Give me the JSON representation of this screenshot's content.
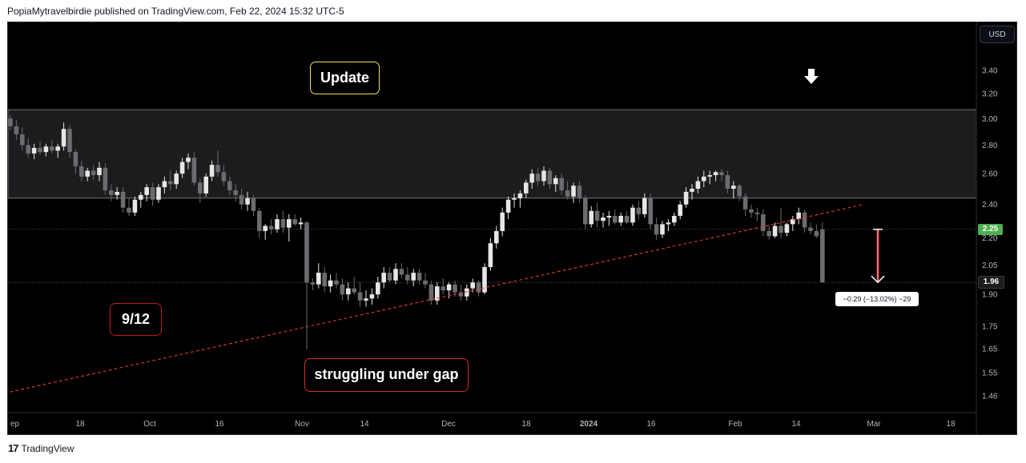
{
  "header": {
    "text": "PopiaMytravelbirdie published on TradingView.com, Feb 22, 2024 15:32 UTC-5"
  },
  "toolbar": {
    "currency": "USD"
  },
  "footer": {
    "brand": "TradingView",
    "logo_glyph": "17"
  },
  "annotations": {
    "update": "Update",
    "date_label": "9/12",
    "gap_label": "struggling under gap",
    "measure": "−0.29 (−13.02%) −29"
  },
  "price_tags": {
    "last": "2.25",
    "current": "1.96"
  },
  "colors": {
    "background": "#000000",
    "candle_up": "#e6e6e6",
    "candle_down": "#6b6b70",
    "trendline": "#e53935",
    "gap_zone": "#1c1c1e",
    "last_price_tag": "#4caf50",
    "current_price_tag": "#1c1c1e",
    "measure_arrow": "#8b0000",
    "update_border": "#f5e06a",
    "label_border": "#d32f2f"
  },
  "chart_data": {
    "type": "candlestick",
    "y_axis": {
      "ticks": [
        3.4,
        3.2,
        3.0,
        2.8,
        2.6,
        2.4,
        2.2,
        2.05,
        1.9,
        1.75,
        1.65,
        1.55,
        1.46
      ],
      "scale": "log"
    },
    "x_axis": {
      "ticks": [
        "ep",
        "18",
        "Oct",
        "16",
        "Nov",
        "14",
        "Dec",
        "18",
        "2024",
        "16",
        "Feb",
        "14",
        "Mar",
        "18"
      ]
    },
    "gap_zone": {
      "top": 3.07,
      "bottom": 2.44
    },
    "trendline": {
      "from": {
        "candle": -1,
        "price": 1.47
      },
      "to": {
        "candle": 144,
        "price": 2.4
      }
    },
    "last_price": 2.25,
    "current_price": 1.96,
    "candles": [
      [
        3.0,
        3.03,
        2.91,
        2.94
      ],
      [
        2.94,
        2.99,
        2.84,
        2.88
      ],
      [
        2.88,
        2.93,
        2.76,
        2.8
      ],
      [
        2.8,
        2.85,
        2.71,
        2.74
      ],
      [
        2.74,
        2.81,
        2.7,
        2.78
      ],
      [
        2.78,
        2.83,
        2.73,
        2.75
      ],
      [
        2.75,
        2.81,
        2.72,
        2.79
      ],
      [
        2.79,
        2.84,
        2.74,
        2.76
      ],
      [
        2.76,
        2.81,
        2.71,
        2.79
      ],
      [
        2.79,
        2.97,
        2.76,
        2.92
      ],
      [
        2.92,
        2.95,
        2.71,
        2.75
      ],
      [
        2.75,
        2.77,
        2.6,
        2.65
      ],
      [
        2.65,
        2.69,
        2.55,
        2.58
      ],
      [
        2.58,
        2.64,
        2.55,
        2.62
      ],
      [
        2.62,
        2.66,
        2.56,
        2.59
      ],
      [
        2.59,
        2.68,
        2.55,
        2.64
      ],
      [
        2.64,
        2.67,
        2.46,
        2.49
      ],
      [
        2.49,
        2.53,
        2.42,
        2.46
      ],
      [
        2.46,
        2.51,
        2.43,
        2.48
      ],
      [
        2.48,
        2.51,
        2.35,
        2.38
      ],
      [
        2.38,
        2.44,
        2.33,
        2.35
      ],
      [
        2.35,
        2.45,
        2.33,
        2.43
      ],
      [
        2.43,
        2.48,
        2.38,
        2.46
      ],
      [
        2.46,
        2.53,
        2.42,
        2.51
      ],
      [
        2.51,
        2.54,
        2.39,
        2.43
      ],
      [
        2.43,
        2.53,
        2.41,
        2.51
      ],
      [
        2.51,
        2.58,
        2.47,
        2.55
      ],
      [
        2.55,
        2.62,
        2.49,
        2.53
      ],
      [
        2.53,
        2.62,
        2.5,
        2.6
      ],
      [
        2.6,
        2.71,
        2.57,
        2.68
      ],
      [
        2.68,
        2.74,
        2.63,
        2.71
      ],
      [
        2.71,
        2.75,
        2.52,
        2.54
      ],
      [
        2.54,
        2.57,
        2.41,
        2.47
      ],
      [
        2.47,
        2.6,
        2.45,
        2.58
      ],
      [
        2.58,
        2.69,
        2.55,
        2.66
      ],
      [
        2.66,
        2.76,
        2.58,
        2.61
      ],
      [
        2.61,
        2.66,
        2.52,
        2.55
      ],
      [
        2.55,
        2.58,
        2.46,
        2.49
      ],
      [
        2.49,
        2.53,
        2.42,
        2.46
      ],
      [
        2.46,
        2.5,
        2.37,
        2.4
      ],
      [
        2.4,
        2.48,
        2.36,
        2.44
      ],
      [
        2.44,
        2.46,
        2.33,
        2.36
      ],
      [
        2.36,
        2.38,
        2.2,
        2.24
      ],
      [
        2.24,
        2.28,
        2.19,
        2.27
      ],
      [
        2.27,
        2.31,
        2.22,
        2.25
      ],
      [
        2.25,
        2.34,
        2.23,
        2.31
      ],
      [
        2.31,
        2.36,
        2.23,
        2.26
      ],
      [
        2.26,
        2.34,
        2.18,
        2.31
      ],
      [
        2.31,
        2.34,
        2.27,
        2.28
      ],
      [
        2.28,
        2.32,
        2.25,
        2.29
      ],
      [
        2.29,
        2.3,
        1.65,
        1.96
      ],
      [
        1.96,
        1.98,
        1.92,
        1.95
      ],
      [
        1.95,
        2.06,
        1.93,
        2.01
      ],
      [
        2.01,
        2.04,
        1.91,
        1.94
      ],
      [
        1.94,
        2.0,
        1.91,
        1.97
      ],
      [
        1.97,
        2.01,
        1.93,
        1.95
      ],
      [
        1.95,
        1.98,
        1.87,
        1.9
      ],
      [
        1.9,
        1.96,
        1.87,
        1.93
      ],
      [
        1.93,
        1.99,
        1.9,
        1.91
      ],
      [
        1.91,
        1.96,
        1.84,
        1.87
      ],
      [
        1.87,
        1.92,
        1.84,
        1.88
      ],
      [
        1.88,
        1.93,
        1.85,
        1.9
      ],
      [
        1.9,
        1.99,
        1.88,
        1.96
      ],
      [
        1.96,
        2.04,
        1.93,
        2.01
      ],
      [
        2.01,
        2.04,
        1.96,
        1.97
      ],
      [
        1.97,
        2.06,
        1.95,
        2.03
      ],
      [
        2.03,
        2.06,
        1.98,
        2.0
      ],
      [
        2.0,
        2.04,
        1.95,
        1.97
      ],
      [
        1.97,
        2.03,
        1.94,
        2.01
      ],
      [
        2.01,
        2.03,
        1.95,
        1.97
      ],
      [
        1.97,
        2.01,
        1.93,
        1.95
      ],
      [
        1.95,
        1.97,
        1.85,
        1.87
      ],
      [
        1.87,
        1.96,
        1.85,
        1.94
      ],
      [
        1.94,
        1.98,
        1.9,
        1.92
      ],
      [
        1.92,
        1.96,
        1.88,
        1.95
      ],
      [
        1.95,
        1.97,
        1.89,
        1.91
      ],
      [
        1.91,
        1.95,
        1.87,
        1.89
      ],
      [
        1.89,
        1.95,
        1.87,
        1.93
      ],
      [
        1.93,
        1.98,
        1.91,
        1.96
      ],
      [
        1.96,
        1.97,
        1.89,
        1.91
      ],
      [
        1.91,
        2.06,
        1.9,
        2.04
      ],
      [
        2.04,
        2.2,
        2.02,
        2.17
      ],
      [
        2.17,
        2.27,
        2.14,
        2.24
      ],
      [
        2.24,
        2.38,
        2.21,
        2.35
      ],
      [
        2.35,
        2.45,
        2.31,
        2.43
      ],
      [
        2.43,
        2.47,
        2.38,
        2.44
      ],
      [
        2.44,
        2.49,
        2.38,
        2.47
      ],
      [
        2.47,
        2.56,
        2.44,
        2.54
      ],
      [
        2.54,
        2.63,
        2.5,
        2.6
      ],
      [
        2.6,
        2.64,
        2.52,
        2.55
      ],
      [
        2.55,
        2.65,
        2.52,
        2.62
      ],
      [
        2.62,
        2.64,
        2.5,
        2.53
      ],
      [
        2.53,
        2.59,
        2.48,
        2.57
      ],
      [
        2.57,
        2.6,
        2.46,
        2.49
      ],
      [
        2.49,
        2.55,
        2.43,
        2.45
      ],
      [
        2.45,
        2.54,
        2.41,
        2.52
      ],
      [
        2.52,
        2.55,
        2.41,
        2.44
      ],
      [
        2.44,
        2.46,
        2.25,
        2.28
      ],
      [
        2.28,
        2.39,
        2.26,
        2.36
      ],
      [
        2.36,
        2.41,
        2.26,
        2.3
      ],
      [
        2.3,
        2.35,
        2.26,
        2.32
      ],
      [
        2.32,
        2.36,
        2.27,
        2.33
      ],
      [
        2.33,
        2.37,
        2.28,
        2.29
      ],
      [
        2.29,
        2.35,
        2.27,
        2.33
      ],
      [
        2.33,
        2.36,
        2.28,
        2.29
      ],
      [
        2.29,
        2.4,
        2.27,
        2.38
      ],
      [
        2.38,
        2.42,
        2.31,
        2.34
      ],
      [
        2.34,
        2.47,
        2.32,
        2.44
      ],
      [
        2.44,
        2.47,
        2.25,
        2.28
      ],
      [
        2.28,
        2.32,
        2.19,
        2.22
      ],
      [
        2.22,
        2.3,
        2.2,
        2.28
      ],
      [
        2.28,
        2.31,
        2.24,
        2.29
      ],
      [
        2.29,
        2.35,
        2.27,
        2.33
      ],
      [
        2.33,
        2.42,
        2.31,
        2.4
      ],
      [
        2.4,
        2.51,
        2.38,
        2.48
      ],
      [
        2.48,
        2.53,
        2.43,
        2.5
      ],
      [
        2.5,
        2.58,
        2.47,
        2.55
      ],
      [
        2.55,
        2.62,
        2.51,
        2.58
      ],
      [
        2.58,
        2.62,
        2.53,
        2.59
      ],
      [
        2.59,
        2.62,
        2.55,
        2.61
      ],
      [
        2.61,
        2.63,
        2.55,
        2.59
      ],
      [
        2.59,
        2.62,
        2.47,
        2.5
      ],
      [
        2.5,
        2.55,
        2.44,
        2.52
      ],
      [
        2.52,
        2.53,
        2.42,
        2.45
      ],
      [
        2.45,
        2.47,
        2.33,
        2.37
      ],
      [
        2.37,
        2.4,
        2.32,
        2.35
      ],
      [
        2.35,
        2.38,
        2.3,
        2.34
      ],
      [
        2.34,
        2.37,
        2.21,
        2.24
      ],
      [
        2.24,
        2.27,
        2.19,
        2.21
      ],
      [
        2.21,
        2.29,
        2.2,
        2.27
      ],
      [
        2.27,
        2.38,
        2.2,
        2.23
      ],
      [
        2.23,
        2.29,
        2.21,
        2.28
      ],
      [
        2.28,
        2.33,
        2.24,
        2.31
      ],
      [
        2.31,
        2.38,
        2.28,
        2.35
      ],
      [
        2.35,
        2.37,
        2.23,
        2.26
      ],
      [
        2.26,
        2.29,
        2.22,
        2.24
      ],
      [
        2.24,
        2.28,
        2.2,
        2.21
      ],
      [
        2.25,
        2.29,
        1.96,
        1.96
      ]
    ]
  }
}
